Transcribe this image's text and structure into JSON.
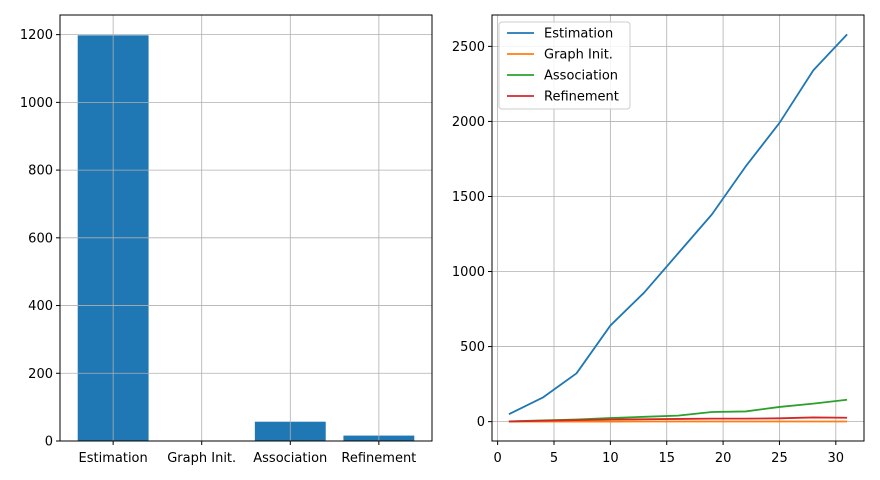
{
  "chart_data": [
    {
      "type": "bar",
      "categories": [
        "Estimation",
        "Graph Init.",
        "Association",
        "Refinement"
      ],
      "values": [
        1198,
        0.5,
        57,
        16
      ],
      "title": "",
      "xlabel": "",
      "ylabel": "",
      "ylim": [
        0,
        1258
      ],
      "yticks": [
        0,
        200,
        400,
        600,
        800,
        1000,
        1200
      ],
      "color": "#1f77b4",
      "grid": true
    },
    {
      "type": "line",
      "x": [
        1,
        4,
        7,
        10,
        13,
        16,
        19,
        22,
        25,
        28,
        31
      ],
      "series": [
        {
          "name": "Estimation",
          "color": "#1f77b4",
          "values": [
            50,
            160,
            322,
            640,
            860,
            1120,
            1380,
            1700,
            1990,
            2340,
            2580
          ]
        },
        {
          "name": "Graph Init.",
          "color": "#ff7f0e",
          "values": [
            0,
            0,
            0.5,
            0.5,
            1,
            1,
            1,
            1,
            1,
            1,
            1
          ]
        },
        {
          "name": "Association",
          "color": "#2ca02c",
          "values": [
            2,
            8,
            14,
            24,
            32,
            40,
            64,
            68,
            98,
            120,
            146
          ]
        },
        {
          "name": "Refinement",
          "color": "#d62728",
          "values": [
            1,
            6,
            10,
            14,
            16,
            18,
            20,
            20,
            22,
            28,
            26
          ]
        }
      ],
      "title": "",
      "xlabel": "",
      "ylabel": "",
      "xlim": [
        -0.5,
        32.5
      ],
      "ylim": [
        -129,
        2709
      ],
      "xticks": [
        0,
        5,
        10,
        15,
        20,
        25,
        30
      ],
      "yticks": [
        0,
        500,
        1000,
        1500,
        2000,
        2500
      ],
      "grid": true,
      "legend": "top-left"
    }
  ]
}
